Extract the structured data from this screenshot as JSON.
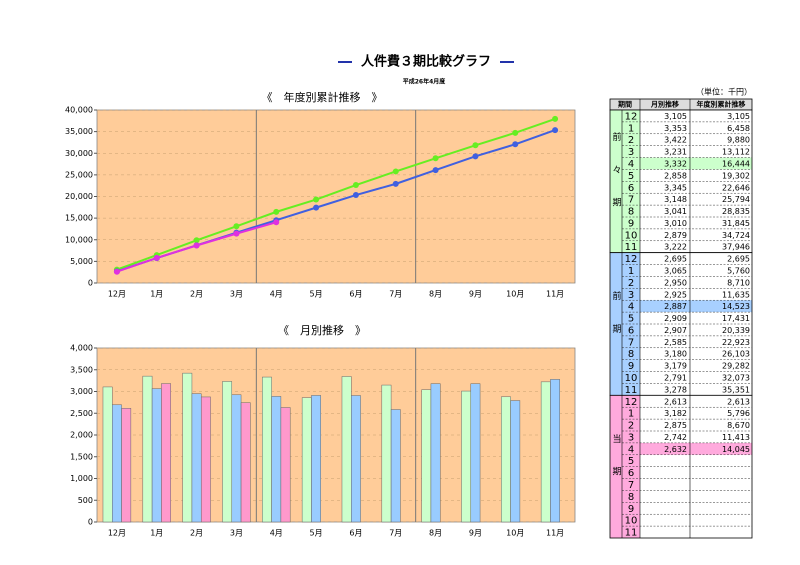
{
  "title": "人件費３期比較グラフ",
  "subtitle": "平成26年4月度",
  "chart_data": [
    {
      "type": "line",
      "title": "《　年度別累計推移　》",
      "categories": [
        "12月",
        "1月",
        "2月",
        "3月",
        "4月",
        "5月",
        "6月",
        "7月",
        "8月",
        "9月",
        "10月",
        "11月"
      ],
      "series": [
        {
          "color": "#66ee22",
          "values": [
            3105,
            6458,
            9880,
            13112,
            16444,
            19302,
            22646,
            25794,
            28835,
            31845,
            34724,
            37946
          ]
        },
        {
          "color": "#4060e0",
          "values": [
            2695,
            5760,
            8710,
            11635,
            14523,
            17431,
            20339,
            22923,
            26103,
            29282,
            32073,
            35351
          ]
        },
        {
          "color": "#e030e0",
          "values": [
            2613,
            5796,
            8670,
            11413,
            14045,
            null,
            null,
            null,
            null,
            null,
            null,
            null
          ]
        }
      ],
      "ylim": [
        0,
        40000
      ],
      "yticks": [
        0,
        {
          "value": 5000,
          "label": "5,000"
        },
        {
          "value": 10000,
          "label": "10,000"
        },
        {
          "value": 15000,
          "label": "15,000"
        },
        {
          "value": 20000,
          "label": "20,000"
        },
        {
          "value": 25000,
          "label": "25,000"
        },
        {
          "value": 30000,
          "label": "30,000"
        },
        {
          "value": 35000,
          "label": "35,000"
        },
        {
          "value": 40000,
          "label": "40,000"
        }
      ],
      "grid": true
    },
    {
      "type": "bar",
      "title": "《　月別推移　》",
      "categories": [
        "12月",
        "1月",
        "2月",
        "3月",
        "4月",
        "5月",
        "6月",
        "7月",
        "8月",
        "9月",
        "10月",
        "11月"
      ],
      "series": [
        {
          "color": "#ccffcc",
          "values": [
            3105,
            3353,
            3422,
            3231,
            3332,
            2858,
            3345,
            3148,
            3041,
            3010,
            2879,
            3222
          ]
        },
        {
          "color": "#99ccff",
          "values": [
            2695,
            3065,
            2950,
            2925,
            2887,
            2909,
            2907,
            2585,
            3180,
            3179,
            2791,
            3278
          ]
        },
        {
          "color": "#ff99cc",
          "values": [
            2613,
            3182,
            2875,
            2742,
            2632,
            null,
            null,
            null,
            null,
            null,
            null,
            null
          ]
        }
      ],
      "ylim": [
        0,
        4000
      ],
      "yticks": [
        0,
        500,
        {
          "value": 1000,
          "label": "1,000"
        },
        {
          "value": 1500,
          "label": "1,500"
        },
        {
          "value": 2000,
          "label": "2,000"
        },
        {
          "value": 2500,
          "label": "2,500"
        },
        {
          "value": 3000,
          "label": "3,000"
        },
        {
          "value": 3500,
          "label": "3,500"
        },
        {
          "value": 4000,
          "label": "4,000"
        }
      ],
      "grid": true
    }
  ],
  "table": {
    "unit": "（単位：千円）",
    "headers": [
      "期間",
      "月別推移",
      "年度別累計推移"
    ],
    "groups": [
      {
        "period": "前々期",
        "color": "#ccffcc",
        "highlight_row": 4,
        "rows": [
          [
            "12",
            "3,105",
            "3,105"
          ],
          [
            "1",
            "3,353",
            "6,458"
          ],
          [
            "2",
            "3,422",
            "9,880"
          ],
          [
            "3",
            "3,231",
            "13,112"
          ],
          [
            "4",
            "3,332",
            "16,444"
          ],
          [
            "5",
            "2,858",
            "19,302"
          ],
          [
            "6",
            "3,345",
            "22,646"
          ],
          [
            "7",
            "3,148",
            "25,794"
          ],
          [
            "8",
            "3,041",
            "28,835"
          ],
          [
            "9",
            "3,010",
            "31,845"
          ],
          [
            "10",
            "2,879",
            "34,724"
          ],
          [
            "11",
            "3,222",
            "37,946"
          ]
        ]
      },
      {
        "period": "前期",
        "color": "#a8d0ff",
        "highlight_row": 4,
        "rows": [
          [
            "12",
            "2,695",
            "2,695"
          ],
          [
            "1",
            "3,065",
            "5,760"
          ],
          [
            "2",
            "2,950",
            "8,710"
          ],
          [
            "3",
            "2,925",
            "11,635"
          ],
          [
            "4",
            "2,887",
            "14,523"
          ],
          [
            "5",
            "2,909",
            "17,431"
          ],
          [
            "6",
            "2,907",
            "20,339"
          ],
          [
            "7",
            "2,585",
            "22,923"
          ],
          [
            "8",
            "3,180",
            "26,103"
          ],
          [
            "9",
            "3,179",
            "29,282"
          ],
          [
            "10",
            "2,791",
            "32,073"
          ],
          [
            "11",
            "3,278",
            "35,351"
          ]
        ]
      },
      {
        "period": "当期",
        "color": "#ffaadd",
        "highlight_row": 4,
        "rows": [
          [
            "12",
            "2,613",
            "2,613"
          ],
          [
            "1",
            "3,182",
            "5,796"
          ],
          [
            "2",
            "2,875",
            "8,670"
          ],
          [
            "3",
            "2,742",
            "11,413"
          ],
          [
            "4",
            "2,632",
            "14,045"
          ],
          [
            "5"
          ],
          [
            "6"
          ],
          [
            "7"
          ],
          [
            "8"
          ],
          [
            "9"
          ],
          [
            "10"
          ],
          [
            "11"
          ]
        ]
      }
    ]
  }
}
